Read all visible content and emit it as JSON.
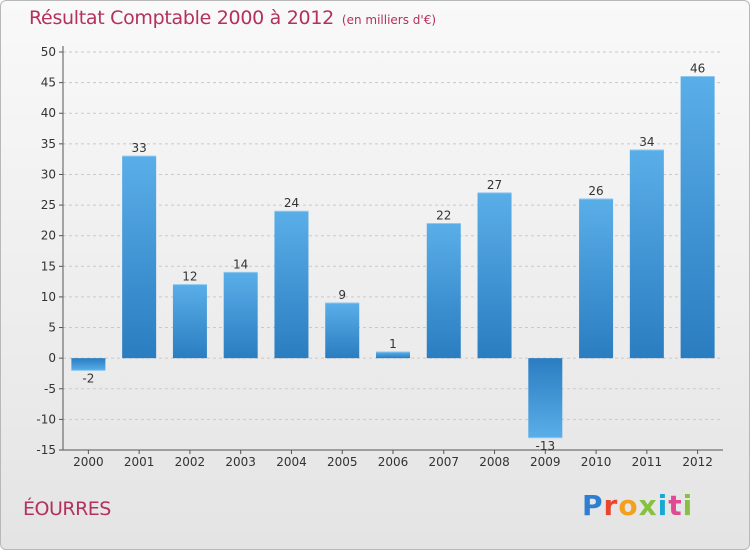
{
  "title": "Résultat Comptable 2000 à 2012",
  "subtitle": "(en milliers d'€)",
  "commune": "ÉOURRES",
  "logo": {
    "p": "P",
    "r": "r",
    "o": "o",
    "x": "x",
    "i": "i",
    "t": "t",
    "i2": "i"
  },
  "colors": {
    "accent": "#b3305f",
    "bar_light": "#5aaee8",
    "bar_dark": "#2a7dc0"
  },
  "chart_data": {
    "type": "bar",
    "title": "Résultat Comptable 2000 à 2012",
    "subtitle": "(en milliers d'€)",
    "xlabel": "",
    "ylabel": "",
    "ylim": [
      -15,
      50
    ],
    "yticks": [
      -15,
      -10,
      -5,
      0,
      5,
      10,
      15,
      20,
      25,
      30,
      35,
      40,
      45,
      50
    ],
    "grid": true,
    "categories": [
      "2000",
      "2001",
      "2002",
      "2003",
      "2004",
      "2005",
      "2006",
      "2007",
      "2008",
      "2009",
      "2010",
      "2011",
      "2012"
    ],
    "values": [
      -2,
      33,
      12,
      14,
      24,
      9,
      1,
      22,
      27,
      -13,
      26,
      34,
      46
    ]
  }
}
